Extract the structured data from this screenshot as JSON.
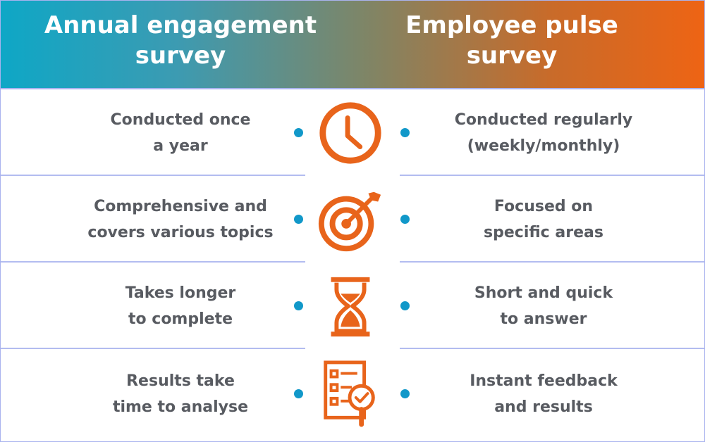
{
  "header": {
    "left_title": [
      "Annual engagement",
      "survey"
    ],
    "right_title": [
      "Employee pulse",
      "survey"
    ],
    "gradient_start": "#0ea7c6",
    "gradient_end": "#ee6414"
  },
  "colors": {
    "accent": "#e8641b",
    "dot": "#1198c9",
    "text": "#585b61",
    "divider": "#b3bcf0"
  },
  "rows": [
    {
      "icon": "clock-icon",
      "left": [
        "Conducted once",
        "a year"
      ],
      "right": [
        "Conducted regularly",
        "(weekly/monthly)"
      ]
    },
    {
      "icon": "target-icon",
      "left": [
        "Comprehensive and",
        "covers various topics"
      ],
      "right": [
        "Focused on",
        "specific areas"
      ]
    },
    {
      "icon": "hourglass-icon",
      "left": [
        "Takes longer",
        "to complete"
      ],
      "right": [
        "Short and quick",
        "to answer"
      ]
    },
    {
      "icon": "checklist-icon",
      "left": [
        "Results take",
        "time to analyse"
      ],
      "right": [
        "Instant feedback",
        "and results"
      ]
    }
  ]
}
